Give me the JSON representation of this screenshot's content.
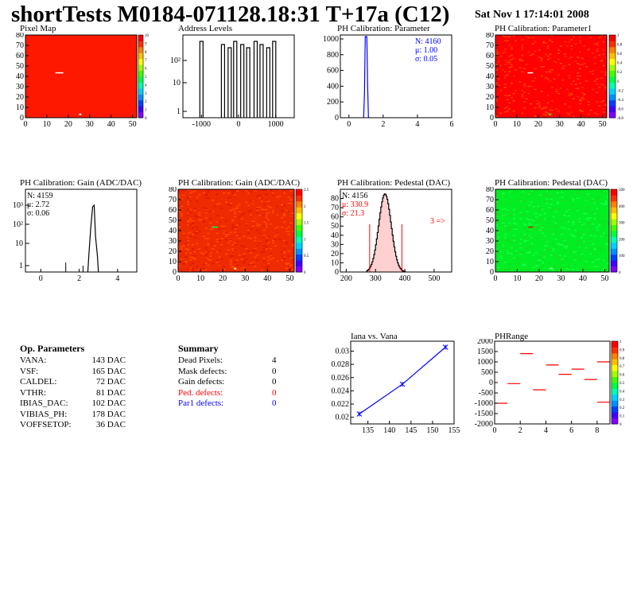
{
  "header": {
    "title": "shortTests M0184-071128.18:31 T+17a (C12)",
    "date": "Sat Nov  1 17:14:01 2008"
  },
  "colors": {
    "background": "#ffffff",
    "map_red": "#ff1800",
    "gain_red": "#ee2a00",
    "ped_green": "#00ee22",
    "hist_blue": "#0000ff",
    "text_red": "#ff0000"
  },
  "chart_data": [
    {
      "id": "pixel-map",
      "type": "heatmap",
      "title": "Pixel Map",
      "xlim": [
        0,
        52
      ],
      "ylim": [
        0,
        80
      ],
      "xticks": [
        "0",
        "10",
        "20",
        "30",
        "40",
        "50"
      ],
      "yticks": [
        "0",
        "10",
        "20",
        "30",
        "40",
        "50",
        "60",
        "70",
        "80"
      ],
      "zticks": [
        "0",
        "1",
        "2",
        "3",
        "4",
        "5",
        "6",
        "7",
        "8",
        "9",
        "10"
      ],
      "fill_value": 10
    },
    {
      "id": "address-levels",
      "type": "bar",
      "title": "Address Levels",
      "log_y": true,
      "xlim": [
        -1500,
        1500
      ],
      "xticks": [
        "-1000",
        "0",
        "1000"
      ],
      "yticks": [
        "1",
        "10",
        "10²"
      ],
      "peaks_x": [
        -1000,
        -420,
        -240,
        -90,
        100,
        260,
        460,
        620,
        800,
        960
      ]
    },
    {
      "id": "ph-parameter",
      "type": "bar",
      "title": "PH Calibration: Parameter",
      "xlim": [
        -0.5,
        6
      ],
      "ylim": [
        0,
        1050
      ],
      "xticks": [
        "0",
        "2",
        "4",
        "6"
      ],
      "yticks": [
        "0",
        "200",
        "400",
        "600",
        "800",
        "1000"
      ],
      "stats": {
        "n": "N: 4160",
        "mu": "μ: 1.00",
        "sigma": "σ: 0.05"
      },
      "peak": {
        "x": 1.0,
        "value": 1030
      }
    },
    {
      "id": "ph-parameter1",
      "type": "heatmap",
      "title": "PH Calibration: Parameter1",
      "xlim": [
        0,
        52
      ],
      "ylim": [
        0,
        80
      ],
      "xticks": [
        "0",
        "10",
        "20",
        "30",
        "40",
        "50"
      ],
      "yticks": [
        "0",
        "10",
        "20",
        "30",
        "40",
        "50",
        "60",
        "70",
        "80"
      ],
      "zticks": [
        "-0.8",
        "-0.6",
        "-0.4",
        "-0.2",
        "0",
        "0.2",
        "0.4",
        "0.6",
        "0.8",
        "1"
      ]
    },
    {
      "id": "ph-gain-hist",
      "type": "bar",
      "title": "PH Calibration: Gain (ADC/DAC)",
      "log_y": true,
      "xlim": [
        -0.8,
        5
      ],
      "xticks": [
        "0",
        "2",
        "4"
      ],
      "yticks": [
        "1",
        "10",
        "10²",
        "10³"
      ],
      "stats": {
        "n": "N: 4159",
        "mu": "μ: 2.72",
        "sigma": "σ: 0.06"
      },
      "peak": {
        "x": 2.72,
        "value": 1000
      }
    },
    {
      "id": "ph-gain-map",
      "type": "heatmap",
      "title": "PH Calibration: Gain (ADC/DAC)",
      "xlim": [
        0,
        52
      ],
      "ylim": [
        0,
        80
      ],
      "xticks": [
        "0",
        "10",
        "20",
        "30",
        "40",
        "50"
      ],
      "yticks": [
        "0",
        "10",
        "20",
        "30",
        "40",
        "50",
        "60",
        "70",
        "80"
      ],
      "zticks": [
        "0",
        "0.5",
        "1",
        "1.5",
        "2",
        "2.5"
      ]
    },
    {
      "id": "ph-pedestal-hist",
      "type": "bar",
      "title": "PH Calibration: Pedestal (DAC)",
      "xlim": [
        180,
        560
      ],
      "ylim": [
        0,
        90
      ],
      "xticks": [
        "200",
        "300",
        "400",
        "500"
      ],
      "yticks": [
        "0",
        "10",
        "20",
        "30",
        "40",
        "50",
        "60",
        "70",
        "80"
      ],
      "stats": {
        "n": "N: 4156",
        "mu": "μ: 330.9",
        "sigma": "σ: 21.3"
      },
      "annotation": "3 =>",
      "cut_lines_x": [
        280,
        390
      ],
      "peak": {
        "x": 330.9,
        "value": 85
      }
    },
    {
      "id": "ph-pedestal-map",
      "type": "heatmap",
      "title": "PH Calibration: Pedestal (DAC)",
      "xlim": [
        0,
        52
      ],
      "ylim": [
        0,
        80
      ],
      "xticks": [
        "0",
        "10",
        "20",
        "30",
        "40",
        "50"
      ],
      "yticks": [
        "0",
        "10",
        "20",
        "30",
        "40",
        "50",
        "60",
        "70",
        "80"
      ],
      "zticks": [
        "0",
        "100",
        "200",
        "300",
        "400",
        "500"
      ]
    },
    {
      "id": "iana-vana",
      "type": "line",
      "title": "Iana vs. Vana",
      "xlim": [
        131,
        155
      ],
      "ylim": [
        0.019,
        0.0315
      ],
      "xticks": [
        "135",
        "140",
        "145",
        "150",
        "155"
      ],
      "yticks": [
        "0.02",
        "0.022",
        "0.024",
        "0.026",
        "0.028",
        "0.03"
      ],
      "x": [
        133,
        143,
        153
      ],
      "y": [
        0.0205,
        0.025,
        0.0306
      ]
    },
    {
      "id": "phrange",
      "type": "scatter",
      "title": "PHRange",
      "xlim": [
        0,
        9
      ],
      "ylim": [
        -2000,
        2000
      ],
      "xticks": [
        "0",
        "2",
        "4",
        "6",
        "8"
      ],
      "yticks": [
        "-2000",
        "-1500",
        "-1000",
        "-500",
        "0",
        "500",
        "1000",
        "1500",
        "2000"
      ],
      "zticks": [
        "0",
        "0.1",
        "0.2",
        "0.3",
        "0.4",
        "0.5",
        "0.6",
        "0.7",
        "0.8",
        "0.9",
        "1"
      ],
      "segments": [
        {
          "x": 0.5,
          "y": -1000
        },
        {
          "x": 1.5,
          "y": -50
        },
        {
          "x": 2.5,
          "y": 1400
        },
        {
          "x": 3.5,
          "y": -350
        },
        {
          "x": 4.5,
          "y": 850
        },
        {
          "x": 5.5,
          "y": 400
        },
        {
          "x": 6.5,
          "y": 650
        },
        {
          "x": 7.5,
          "y": 150
        },
        {
          "x": 8.5,
          "y": 1000
        },
        {
          "x": 8.5,
          "y": -950
        }
      ]
    }
  ],
  "op_parameters": {
    "title": "Op. Parameters",
    "rows": [
      {
        "name": "VANA:",
        "value": "143 DAC"
      },
      {
        "name": "VSF:",
        "value": "165 DAC"
      },
      {
        "name": "CALDEL:",
        "value": "72 DAC"
      },
      {
        "name": "VTHR:",
        "value": "81 DAC"
      },
      {
        "name": "IBIAS_DAC:",
        "value": "102 DAC"
      },
      {
        "name": "VIBIAS_PH:",
        "value": "178 DAC"
      },
      {
        "name": "VOFFSETOP:",
        "value": "36 DAC"
      }
    ]
  },
  "summary": {
    "title": "Summary",
    "rows": [
      {
        "name": "Dead Pixels:",
        "value": "4",
        "color": "#000000"
      },
      {
        "name": "Mask defects:",
        "value": "0",
        "color": "#000000"
      },
      {
        "name": "Gain defects:",
        "value": "0",
        "color": "#000000"
      },
      {
        "name": "Ped. defects:",
        "value": "0",
        "color": "#ff0000"
      },
      {
        "name": "Par1 defects:",
        "value": "0",
        "color": "#0000ff"
      }
    ]
  }
}
